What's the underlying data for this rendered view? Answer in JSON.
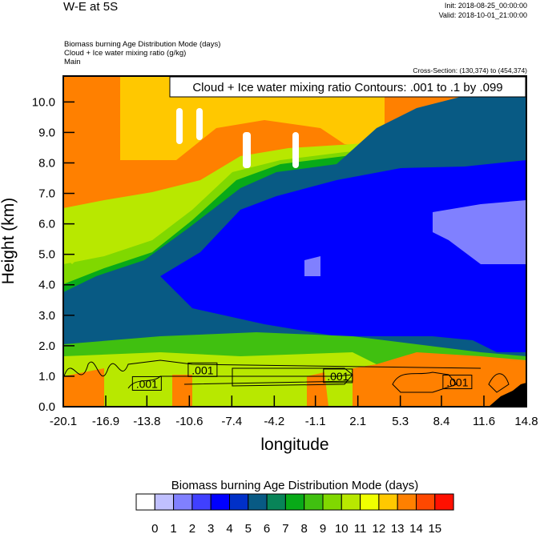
{
  "header": {
    "title": "W-E at 5S",
    "init": "Init: 2018-08-25_00:00:00",
    "valid": "Valid: 2018-10-01_21:00:00",
    "fields": [
      "Biomass burning Age Distribution Mode   (days)",
      "Cloud + Ice water mixing ratio   (g/kg)",
      "Main"
    ],
    "cross_section": "Cross-Section: (130,374) to (454,374)"
  },
  "chart_data": {
    "type": "heatmap",
    "title": "Cloud + Ice water mixing ratio Contours: .001 to .1 by .099",
    "xlabel": "longitude",
    "ylabel": "Height (km)",
    "xlim": [
      -20.1,
      14.8
    ],
    "ylim": [
      0.0,
      10.85
    ],
    "x_ticks": [
      "-20.1",
      "-16.9",
      "-13.8",
      "-10.6",
      "-7.4",
      "-4.2",
      "-1.1",
      "2.1",
      "5.3",
      "8.4",
      "11.6",
      "14.8"
    ],
    "y_ticks": [
      "0.0",
      "1.0",
      "2.0",
      "3.0",
      "4.0",
      "5.0",
      "6.0",
      "7.0",
      "8.0",
      "9.0",
      "10.0"
    ],
    "contour_labels": [
      {
        "text": ".001",
        "lon": -13.8,
        "height": 0.75
      },
      {
        "text": ".001",
        "lon": -9.6,
        "height": 1.2
      },
      {
        "text": ".001",
        "lon": 0.6,
        "height": 1.0
      },
      {
        "text": ".001",
        "lon": 9.6,
        "height": 0.8
      }
    ],
    "colorbar": {
      "title": "Biomass burning Age Distribution Mode  (days)",
      "labels": [
        "0",
        "1",
        "2",
        "3",
        "4",
        "5",
        "6",
        "7",
        "8",
        "9",
        "10",
        "11",
        "12",
        "13",
        "14",
        "15"
      ],
      "colors": [
        "#FFFFFF",
        "#C0C0FF",
        "#8080FF",
        "#4040FF",
        "#0000FF",
        "#0030C8",
        "#085A84",
        "#088458",
        "#08AA18",
        "#40C010",
        "#80D800",
        "#B8E800",
        "#F0FF00",
        "#FFC800",
        "#FF8000",
        "#FF4800",
        "#FF1000"
      ]
    }
  }
}
